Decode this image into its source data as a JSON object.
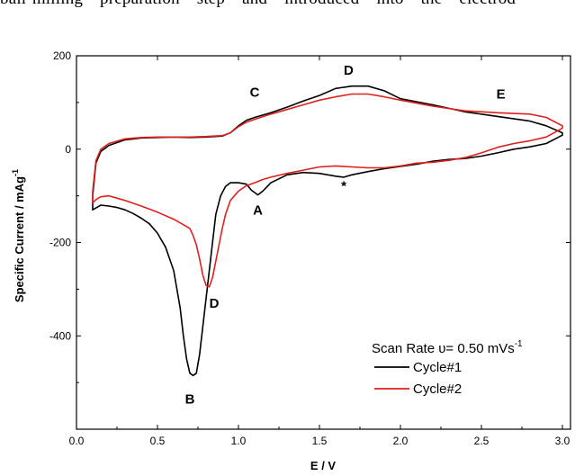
{
  "header_fragment": "ball-milling preparation step and introduced into the electrod",
  "chart_data": {
    "type": "line",
    "title": "",
    "xlabel": "E / V",
    "ylabel_text": "Specific Current / mAg",
    "ylabel_sup": "-1",
    "xlim": [
      0.0,
      3.05
    ],
    "ylim": [
      -600,
      200
    ],
    "x_ticks": [
      0.0,
      0.5,
      1.0,
      1.5,
      2.0,
      2.5,
      3.0
    ],
    "x_tick_labels": [
      "0.0",
      "0.5",
      "1.0",
      "1.5",
      "2.0",
      "2.5",
      "3.0"
    ],
    "y_ticks": [
      200,
      0,
      -200,
      -400
    ],
    "y_tick_labels": [
      "200",
      "0",
      "-200",
      "-400"
    ],
    "grid": false,
    "legend": {
      "placement": "bottom-right",
      "title_text": "Scan Rate υ= 0.50 mVs",
      "title_sup": "-1",
      "entries": [
        {
          "label": "Cycle#1",
          "color": "#000000"
        },
        {
          "label": "Cycle#2",
          "color": "#e0201c"
        }
      ]
    },
    "annotations": [
      {
        "text": "A",
        "x": 1.12,
        "y": -140
      },
      {
        "text": "B",
        "x": 0.7,
        "y": -545
      },
      {
        "text": "C",
        "x": 1.1,
        "y": 112
      },
      {
        "text": "D",
        "x": 1.68,
        "y": 160
      },
      {
        "text": "D",
        "x": 0.85,
        "y": -340
      },
      {
        "text": "E",
        "x": 2.62,
        "y": 108
      },
      {
        "text": "*",
        "x": 1.65,
        "y": -88
      }
    ],
    "series": [
      {
        "name": "Cycle#1",
        "color": "#000000",
        "x": [
          0.1,
          0.1,
          0.12,
          0.15,
          0.2,
          0.3,
          0.4,
          0.5,
          0.6,
          0.7,
          0.8,
          0.9,
          0.95,
          1.0,
          1.05,
          1.1,
          1.2,
          1.3,
          1.4,
          1.5,
          1.6,
          1.7,
          1.8,
          1.9,
          2.0,
          2.2,
          2.4,
          2.6,
          2.8,
          2.9,
          3.0,
          3.0,
          2.9,
          2.8,
          2.7,
          2.6,
          2.5,
          2.4,
          2.3,
          2.2,
          2.1,
          2.0,
          1.9,
          1.8,
          1.7,
          1.65,
          1.6,
          1.5,
          1.4,
          1.3,
          1.2,
          1.15,
          1.12,
          1.08,
          1.05,
          1.0,
          0.95,
          0.92,
          0.89,
          0.86,
          0.84,
          0.82,
          0.8,
          0.78,
          0.76,
          0.74,
          0.72,
          0.7,
          0.68,
          0.66,
          0.64,
          0.6,
          0.55,
          0.5,
          0.45,
          0.4,
          0.35,
          0.3,
          0.25,
          0.2,
          0.15,
          0.1
        ],
        "y": [
          -130,
          -100,
          -30,
          -5,
          8,
          20,
          24,
          25,
          26,
          25,
          26,
          28,
          35,
          50,
          62,
          68,
          78,
          90,
          103,
          115,
          130,
          135,
          135,
          125,
          108,
          95,
          80,
          70,
          60,
          50,
          35,
          30,
          12,
          5,
          0,
          -8,
          -15,
          -20,
          -22,
          -26,
          -32,
          -37,
          -42,
          -48,
          -55,
          -60,
          -58,
          -52,
          -50,
          -55,
          -72,
          -90,
          -98,
          -88,
          -75,
          -72,
          -72,
          -80,
          -100,
          -140,
          -200,
          -260,
          -320,
          -380,
          -440,
          -480,
          -485,
          -480,
          -450,
          -400,
          -340,
          -260,
          -210,
          -180,
          -160,
          -148,
          -138,
          -130,
          -125,
          -122,
          -120,
          -130
        ]
      },
      {
        "name": "Cycle#2",
        "color": "#e0201c",
        "x": [
          0.1,
          0.1,
          0.12,
          0.15,
          0.2,
          0.3,
          0.4,
          0.5,
          0.6,
          0.7,
          0.8,
          0.9,
          0.95,
          1.0,
          1.05,
          1.1,
          1.2,
          1.3,
          1.4,
          1.5,
          1.6,
          1.7,
          1.8,
          1.9,
          2.0,
          2.2,
          2.4,
          2.6,
          2.8,
          2.9,
          3.0,
          3.0,
          2.9,
          2.8,
          2.7,
          2.6,
          2.5,
          2.4,
          2.3,
          2.2,
          2.1,
          2.0,
          1.9,
          1.8,
          1.7,
          1.6,
          1.5,
          1.4,
          1.3,
          1.2,
          1.15,
          1.1,
          1.05,
          1.0,
          0.95,
          0.92,
          0.9,
          0.88,
          0.86,
          0.84,
          0.82,
          0.8,
          0.78,
          0.76,
          0.74,
          0.72,
          0.7,
          0.65,
          0.6,
          0.5,
          0.4,
          0.3,
          0.25,
          0.2,
          0.15,
          0.12,
          0.1
        ],
        "y": [
          -112,
          -90,
          -25,
          0,
          12,
          22,
          25,
          26,
          26,
          26,
          27,
          29,
          35,
          48,
          58,
          64,
          75,
          85,
          95,
          105,
          112,
          118,
          118,
          112,
          105,
          92,
          82,
          78,
          75,
          68,
          50,
          45,
          26,
          18,
          12,
          4,
          -8,
          -18,
          -24,
          -28,
          -30,
          -36,
          -40,
          -40,
          -38,
          -36,
          -38,
          -45,
          -52,
          -60,
          -65,
          -72,
          -78,
          -90,
          -110,
          -140,
          -170,
          -205,
          -240,
          -275,
          -295,
          -292,
          -270,
          -235,
          -205,
          -185,
          -170,
          -160,
          -150,
          -135,
          -122,
          -110,
          -105,
          -100,
          -102,
          -108,
          -115
        ]
      }
    ]
  }
}
